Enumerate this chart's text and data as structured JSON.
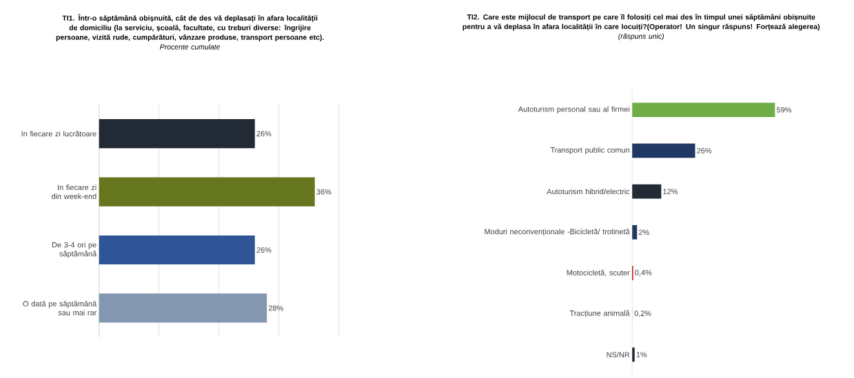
{
  "chart_data": [
    {
      "type": "bar",
      "orientation": "horizontal",
      "title": "TI1. Într-o săptămână obișnuită, cât de des vă deplasați în afara localității de domiciliu (la serviciu, școală, facultate, cu treburi diverse: îngrijire persoane, vizită rude, cumpărături, vânzare produse, transport persoane etc).",
      "subtitle": "Procente cumulate",
      "categories": [
        "In fiecare zi lucrătoare",
        "In fiecare zi din week-end",
        "De 3-4 ori pe săptămână",
        "O dată pe săptămână sau mai rar"
      ],
      "values": [
        26,
        36,
        26,
        28
      ],
      "colors": [
        "#222a35",
        "#66761e",
        "#2f5597",
        "#8497b0"
      ],
      "value_labels": [
        "26%",
        "36%",
        "26%",
        "28%"
      ],
      "xlim": [
        0,
        40
      ],
      "xticks": [
        {
          "value": 0,
          "label": null
        },
        {
          "value": 10,
          "label": null
        },
        {
          "value": 20,
          "label": null
        },
        {
          "value": 30,
          "label": null
        },
        {
          "value": 40,
          "label": null
        }
      ],
      "grid": "x",
      "tick_labels": "y"
    },
    {
      "type": "bar",
      "orientation": "horizontal",
      "title": "TI2. Care este mijlocul de transport pe care îl folosiți cel mai des în timpul unei săptămâni obișnuite pentru a vă deplasa în afara localității în care locuiți?(Operator! Un singur răspuns! Forțează alegerea)",
      "subtitle": "(răspuns unic)",
      "categories": [
        "Autoturism personal sau al firmei",
        "Transport public comun",
        "Autoturism hibrid/electric",
        "Moduri neconvenționale -Bicicletă/ trotinetă",
        "Motocicletă, scuter",
        "Tracțiune animală",
        "NS/NR"
      ],
      "values": [
        59,
        26,
        12,
        2,
        0.4,
        0.2,
        1
      ],
      "colors": [
        "#70ad47",
        "#203864",
        "#222a35",
        "#203864",
        "#c00000",
        "#d9d9d9",
        "#222a35"
      ],
      "value_labels": [
        "59%",
        "26%",
        "12%",
        "2%",
        "0,4%",
        "0,2%",
        "1%"
      ],
      "tick_labels": "y"
    }
  ]
}
